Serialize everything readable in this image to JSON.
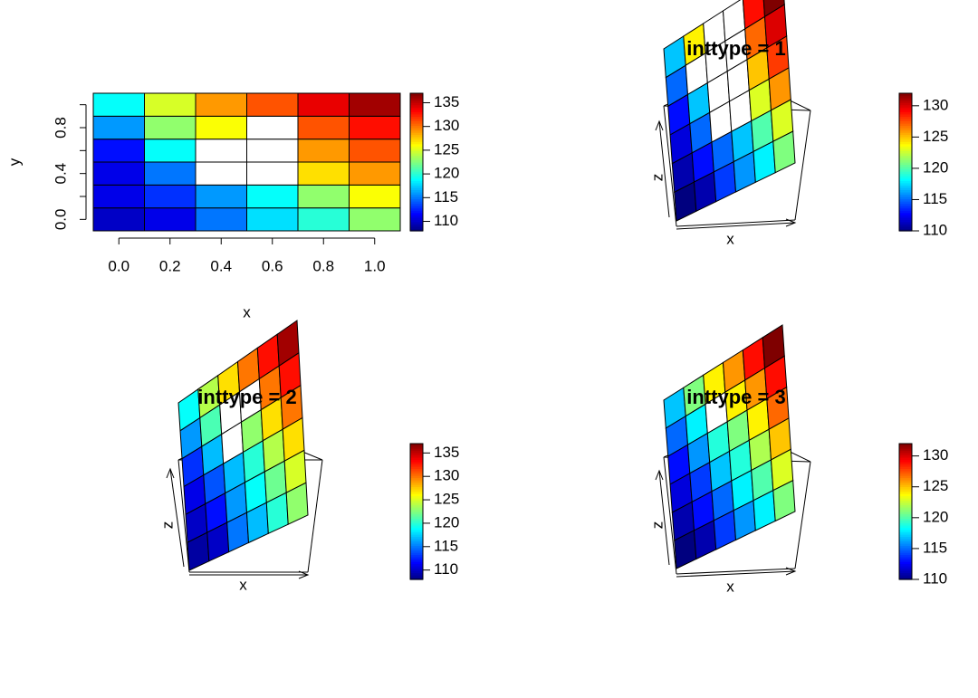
{
  "colors": {
    "jet": [
      "#00007F",
      "#0000FF",
      "#007FFF",
      "#00FFFF",
      "#7FFF7F",
      "#FFFF00",
      "#FF7F00",
      "#FF0000",
      "#7F0000"
    ],
    "missing": "#FFFFFF",
    "cell_border": "#000000"
  },
  "chart_data": [
    {
      "type": "heatmap",
      "title": "",
      "xlabel": "x",
      "ylabel": "y",
      "x_ticks": [
        "0.0",
        "0.2",
        "0.4",
        "0.6",
        "0.8",
        "1.0"
      ],
      "y_ticks": [
        "0.0",
        "0.4",
        "0.8"
      ],
      "x": [
        0.0,
        0.2,
        0.4,
        0.6,
        0.8,
        1.0
      ],
      "y": [
        0.0,
        0.2,
        0.4,
        0.6,
        0.8,
        1.0
      ],
      "z": [
        [
          110,
          111,
          115,
          118,
          120,
          123
        ],
        [
          111,
          113,
          116,
          119,
          123,
          126
        ],
        [
          111,
          115,
          null,
          null,
          127,
          129
        ],
        [
          112,
          119,
          null,
          null,
          129,
          131
        ],
        [
          116,
          123,
          126,
          null,
          131,
          133
        ],
        [
          119,
          125,
          129,
          131,
          134,
          136
        ]
      ],
      "zlim": [
        108,
        137
      ],
      "colorbar_ticks": [
        "110",
        "115",
        "120",
        "125",
        "130",
        "135"
      ],
      "grid": false
    },
    {
      "type": "surface",
      "title": "inttype = 1",
      "xlabel": "x",
      "zlabel": "z",
      "z": [
        [
          110,
          111,
          114,
          116,
          118,
          121
        ],
        [
          111,
          113,
          115,
          117,
          120,
          123
        ],
        [
          112,
          115,
          null,
          null,
          123,
          126
        ],
        [
          113,
          117,
          null,
          null,
          125,
          128
        ],
        [
          115,
          null,
          null,
          null,
          127,
          130
        ],
        [
          117,
          124,
          null,
          null,
          129,
          132
        ]
      ],
      "zlim": [
        110,
        132
      ],
      "colorbar_ticks": [
        "110",
        "115",
        "120",
        "125",
        "130"
      ]
    },
    {
      "type": "surface",
      "title": "inttype = 2",
      "xlabel": "x",
      "zlabel": "z",
      "z": [
        [
          109,
          110,
          115,
          117,
          120,
          123
        ],
        [
          110,
          112,
          116,
          119,
          122,
          125
        ],
        [
          111,
          114,
          117,
          120,
          124,
          127
        ],
        [
          113,
          117,
          null,
          123,
          127,
          130
        ],
        [
          116,
          121,
          null,
          null,
          130,
          133
        ],
        [
          119,
          124,
          127,
          130,
          133,
          136
        ]
      ],
      "zlim": [
        108,
        137
      ],
      "colorbar_ticks": [
        "110",
        "115",
        "120",
        "125",
        "130",
        "135"
      ]
    },
    {
      "type": "surface",
      "title": "inttype = 3",
      "xlabel": "x",
      "zlabel": "z",
      "z": [
        [
          110,
          111,
          114,
          116,
          118,
          121
        ],
        [
          111,
          113,
          115,
          118,
          120,
          123
        ],
        [
          112,
          114,
          117,
          119,
          122,
          125
        ],
        [
          113,
          116,
          119,
          121,
          124,
          127
        ],
        [
          115,
          118,
          null,
          124,
          126,
          129
        ],
        [
          117,
          121,
          124,
          126,
          129,
          132
        ]
      ],
      "zlim": [
        110,
        132
      ],
      "colorbar_ticks": [
        "110",
        "115",
        "120",
        "125",
        "130"
      ]
    }
  ]
}
